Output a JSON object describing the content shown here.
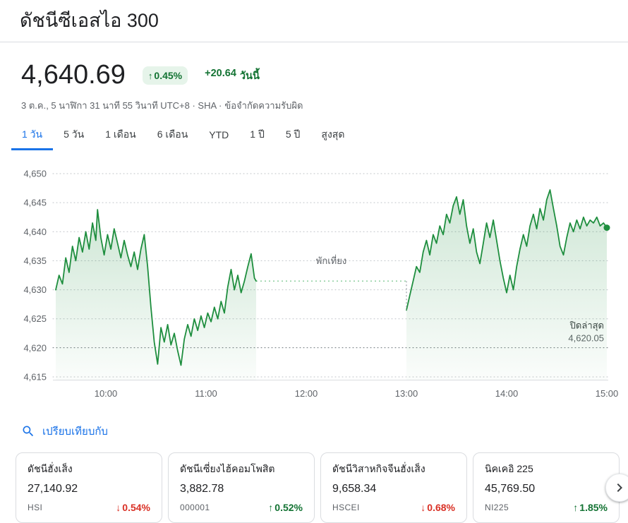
{
  "colors": {
    "accent_blue": "#1a73e8",
    "positive_green": "#137333",
    "positive_badge_bg": "#e6f4ea",
    "negative_red": "#d93025",
    "chart_line": "#1e8e3e"
  },
  "header": {
    "title": "ดัชนีซีเอสไอ 300"
  },
  "quote": {
    "price": "4,640.69",
    "change_direction": "up",
    "change_arrow": "↑",
    "change_percent": "0.45%",
    "change_absolute": "+20.64",
    "change_period": "วันนี้",
    "datetime": "3 ต.ค., 5 นาฬิกา 31 นาที 55 วินาที UTC+8 · SHA ·",
    "disclaimer": "ข้อจำกัดความรับผิด"
  },
  "tabs": [
    {
      "id": "1d",
      "label": "1 วัน",
      "active": true
    },
    {
      "id": "5d",
      "label": "5 วัน",
      "active": false
    },
    {
      "id": "1m",
      "label": "1 เดือน",
      "active": false
    },
    {
      "id": "6m",
      "label": "6 เดือน",
      "active": false
    },
    {
      "id": "ytd",
      "label": "YTD",
      "active": false
    },
    {
      "id": "1y",
      "label": "1 ปี",
      "active": false
    },
    {
      "id": "5y",
      "label": "5 ปี",
      "active": false
    },
    {
      "id": "max",
      "label": "สูงสุด",
      "active": false
    }
  ],
  "chart_data": {
    "type": "line",
    "ylim": [
      4615,
      4650
    ],
    "y_ticks": [
      4615,
      4620,
      4625,
      4630,
      4635,
      4640,
      4645,
      4650
    ],
    "t_range": [
      0,
      330
    ],
    "x_ticks": [
      {
        "t": 30,
        "label": "10:00"
      },
      {
        "t": 90,
        "label": "11:00"
      },
      {
        "t": 150,
        "label": "12:00"
      },
      {
        "t": 210,
        "label": "13:00"
      },
      {
        "t": 270,
        "label": "14:00"
      },
      {
        "t": 330,
        "label": "15:00"
      }
    ],
    "previous_close": {
      "label": "ปิดล่าสุด",
      "value": 4620.05
    },
    "lunch_break": {
      "label": "พักเที่ยง",
      "from_t": 120,
      "to_t": 210,
      "level": 4631.5,
      "open_level": 4626.5
    },
    "sessions": {
      "morning": [
        [
          0,
          4630
        ],
        [
          2,
          4632.5
        ],
        [
          4,
          4631
        ],
        [
          6,
          4635.5
        ],
        [
          8,
          4633
        ],
        [
          10,
          4637.5
        ],
        [
          12,
          4635
        ],
        [
          14,
          4639
        ],
        [
          16,
          4636.5
        ],
        [
          18,
          4640
        ],
        [
          20,
          4637
        ],
        [
          22,
          4641.5
        ],
        [
          24,
          4638.5
        ],
        [
          25,
          4643.8
        ],
        [
          27,
          4639
        ],
        [
          29,
          4636
        ],
        [
          31,
          4639.5
        ],
        [
          33,
          4637
        ],
        [
          35,
          4640.5
        ],
        [
          37,
          4638
        ],
        [
          39,
          4635.5
        ],
        [
          41,
          4638.5
        ],
        [
          43,
          4636
        ],
        [
          45,
          4634
        ],
        [
          47,
          4636.5
        ],
        [
          49,
          4633.5
        ],
        [
          51,
          4637
        ],
        [
          53,
          4639.5
        ],
        [
          55,
          4634
        ],
        [
          57,
          4627
        ],
        [
          59,
          4621
        ],
        [
          61,
          4617.2
        ],
        [
          63,
          4623.5
        ],
        [
          65,
          4621
        ],
        [
          67,
          4624
        ],
        [
          69,
          4620.5
        ],
        [
          71,
          4622.5
        ],
        [
          73,
          4619.5
        ],
        [
          75,
          4617
        ],
        [
          77,
          4621.5
        ],
        [
          79,
          4624
        ],
        [
          81,
          4622
        ],
        [
          83,
          4625
        ],
        [
          85,
          4623
        ],
        [
          87,
          4625.5
        ],
        [
          89,
          4623.5
        ],
        [
          91,
          4626
        ],
        [
          93,
          4624.5
        ],
        [
          95,
          4627
        ],
        [
          97,
          4625
        ],
        [
          99,
          4628
        ],
        [
          101,
          4626
        ],
        [
          103,
          4630.5
        ],
        [
          105,
          4633.5
        ],
        [
          107,
          4630
        ],
        [
          109,
          4632.5
        ],
        [
          111,
          4629.5
        ],
        [
          113,
          4631.5
        ],
        [
          115,
          4634
        ],
        [
          117,
          4636.2
        ],
        [
          119,
          4632
        ],
        [
          120,
          4631.5
        ]
      ],
      "afternoon": [
        [
          210,
          4626.5
        ],
        [
          212,
          4629
        ],
        [
          214,
          4631.5
        ],
        [
          216,
          4634
        ],
        [
          218,
          4633
        ],
        [
          220,
          4636.5
        ],
        [
          222,
          4638.5
        ],
        [
          224,
          4636
        ],
        [
          226,
          4639.5
        ],
        [
          228,
          4638
        ],
        [
          230,
          4641
        ],
        [
          232,
          4639.5
        ],
        [
          234,
          4643
        ],
        [
          236,
          4641.5
        ],
        [
          238,
          4644.5
        ],
        [
          240,
          4646
        ],
        [
          242,
          4643
        ],
        [
          244,
          4645.5
        ],
        [
          246,
          4641
        ],
        [
          248,
          4638
        ],
        [
          250,
          4640.5
        ],
        [
          252,
          4636.5
        ],
        [
          254,
          4634.5
        ],
        [
          256,
          4638
        ],
        [
          258,
          4641.5
        ],
        [
          260,
          4639
        ],
        [
          262,
          4642
        ],
        [
          264,
          4638.5
        ],
        [
          266,
          4635
        ],
        [
          268,
          4632
        ],
        [
          270,
          4629.5
        ],
        [
          272,
          4632.5
        ],
        [
          274,
          4630
        ],
        [
          276,
          4634
        ],
        [
          278,
          4637
        ],
        [
          280,
          4639.5
        ],
        [
          282,
          4637.5
        ],
        [
          284,
          4641
        ],
        [
          286,
          4643
        ],
        [
          288,
          4640.5
        ],
        [
          290,
          4644
        ],
        [
          292,
          4642
        ],
        [
          294,
          4645.5
        ],
        [
          296,
          4647.2
        ],
        [
          298,
          4644
        ],
        [
          300,
          4641
        ],
        [
          302,
          4637.5
        ],
        [
          304,
          4636
        ],
        [
          306,
          4639
        ],
        [
          308,
          4641.5
        ],
        [
          310,
          4640
        ],
        [
          312,
          4642
        ],
        [
          314,
          4640.5
        ],
        [
          316,
          4642.5
        ],
        [
          318,
          4641
        ],
        [
          320,
          4642
        ],
        [
          322,
          4641.5
        ],
        [
          324,
          4642.5
        ],
        [
          326,
          4641
        ],
        [
          328,
          4641.5
        ],
        [
          330,
          4640.69
        ]
      ]
    }
  },
  "compare": {
    "label": "เปรียบเทียบกับ",
    "arrow_up": "↑",
    "arrow_down": "↓",
    "items": [
      {
        "name": "ดัชนีฮั่งเส็ง",
        "price": "27,140.92",
        "ticker": "HSI",
        "change": "0.54%",
        "direction": "down"
      },
      {
        "name": "ดัชนีเซี่ยงไฮ้คอมโพสิต",
        "price": "3,882.78",
        "ticker": "000001",
        "change": "0.52%",
        "direction": "up"
      },
      {
        "name": "ดัชนีวิสาหกิจจีนฮั่งเส็ง",
        "price": "9,658.34",
        "ticker": "HSCEI",
        "change": "0.68%",
        "direction": "down"
      },
      {
        "name": "นิคเคอิ 225",
        "price": "45,769.50",
        "ticker": "NI225",
        "change": "1.85%",
        "direction": "up"
      }
    ]
  }
}
